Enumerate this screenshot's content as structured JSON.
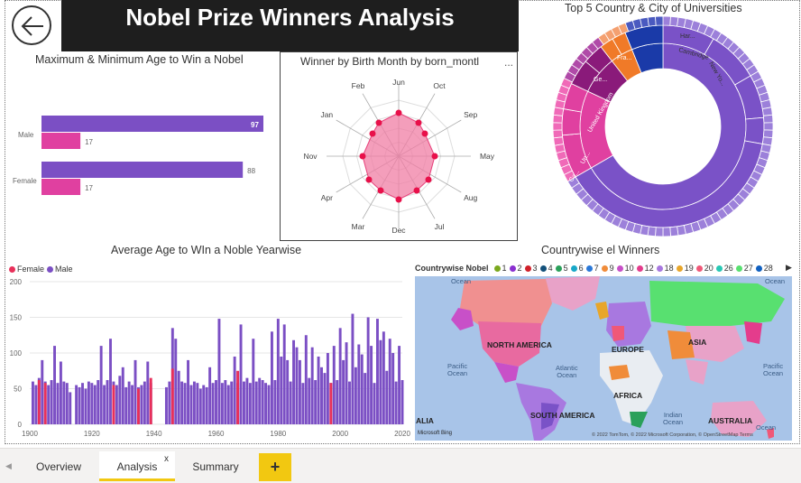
{
  "report": {
    "title": "Nobel Prize Winners Analysis"
  },
  "icons": {
    "back": "back-arrow-icon",
    "more": "more-options-icon",
    "add": "plus-icon",
    "close": "close-icon",
    "scroll": "chevron-left-icon"
  },
  "age_bars": {
    "title": "Maximum & Minimum Age to Win a Nobel",
    "categories": [
      "Male",
      "Female"
    ],
    "max_values": [
      97,
      88
    ],
    "min_values": [
      17,
      17
    ],
    "max_labels": [
      "97",
      "88"
    ],
    "min_labels": [
      "17",
      "17"
    ],
    "colors": {
      "max": "#7b4fc4",
      "min": "#e040a0"
    }
  },
  "radar": {
    "title": "Winner by Birth Month by born_montl",
    "more_label": "...",
    "months": [
      "Jun",
      "Oct",
      "Sep",
      "May",
      "Aug",
      "Jul",
      "Dec",
      "Mar",
      "Apr",
      "Nov",
      "Jan",
      "Feb"
    ],
    "color": "#f07ea4"
  },
  "sunburst": {
    "title": "Top 5 Country & City of Universities",
    "labels": [
      "USA",
      "United Kingdom",
      "Ca...",
      "Un...",
      "Fra...",
      "Ge...",
      "Cambridge",
      "New Yo...",
      "Har..."
    ],
    "colors": [
      "#7a52c7",
      "#e040a0",
      "#f07a28",
      "#8a1a7a",
      "#1a3aa8"
    ]
  },
  "avg_chart": {
    "title": "Average Age to WIn a Noble Yearwise",
    "legend": [
      {
        "name": "Female",
        "color": "#e8305a"
      },
      {
        "name": "Male",
        "color": "#7b4fc4"
      }
    ],
    "x_ticks": [
      "1900",
      "1920",
      "1940",
      "1960",
      "1980",
      "2000",
      "2020"
    ],
    "y_ticks": [
      "0",
      "50",
      "100",
      "150",
      "200"
    ]
  },
  "chart_data": {
    "type": "bar",
    "title": "Average Age to WIn a Noble Yearwise",
    "xlabel": "",
    "ylabel": "",
    "ylim": [
      0,
      200
    ],
    "xlim": [
      1900,
      2020
    ],
    "x": [
      1901,
      1902,
      1903,
      1904,
      1905,
      1906,
      1907,
      1908,
      1909,
      1910,
      1911,
      1912,
      1913,
      1914,
      1915,
      1916,
      1917,
      1918,
      1919,
      1920,
      1921,
      1922,
      1923,
      1924,
      1925,
      1926,
      1927,
      1928,
      1929,
      1930,
      1931,
      1932,
      1933,
      1934,
      1935,
      1936,
      1937,
      1938,
      1939,
      1940,
      1941,
      1942,
      1943,
      1944,
      1945,
      1946,
      1947,
      1948,
      1949,
      1950,
      1951,
      1952,
      1953,
      1954,
      1955,
      1956,
      1957,
      1958,
      1959,
      1960,
      1961,
      1962,
      1963,
      1964,
      1965,
      1966,
      1967,
      1968,
      1969,
      1970,
      1971,
      1972,
      1973,
      1974,
      1975,
      1976,
      1977,
      1978,
      1979,
      1980,
      1981,
      1982,
      1983,
      1984,
      1985,
      1986,
      1987,
      1988,
      1989,
      1990,
      1991,
      1992,
      1993,
      1994,
      1995,
      1996,
      1997,
      1998,
      1999,
      2000,
      2001,
      2002,
      2003,
      2004,
      2005,
      2006,
      2007,
      2008,
      2009,
      2010,
      2011,
      2012,
      2013,
      2014,
      2015,
      2016,
      2017,
      2018,
      2019,
      2020
    ],
    "series": [
      {
        "name": "Male",
        "values": [
          60,
          55,
          65,
          90,
          60,
          55,
          62,
          110,
          58,
          88,
          60,
          58,
          45,
          0,
          55,
          52,
          58,
          50,
          60,
          58,
          55,
          62,
          110,
          55,
          62,
          120,
          60,
          55,
          68,
          80,
          52,
          60,
          55,
          90,
          52,
          55,
          60,
          88,
          58,
          0,
          0,
          0,
          0,
          52,
          60,
          135,
          120,
          75,
          60,
          58,
          90,
          55,
          60,
          58,
          50,
          55,
          52,
          80,
          58,
          62,
          148,
          58,
          62,
          55,
          60,
          95,
          58,
          140,
          60,
          65,
          58,
          120,
          60,
          65,
          62,
          58,
          55,
          130,
          62,
          148,
          95,
          140,
          90,
          60,
          118,
          108,
          90,
          58,
          125,
          65,
          108,
          62,
          95,
          80,
          72,
          100,
          58,
          110,
          62,
          135,
          90,
          115,
          60,
          155,
          80,
          112,
          98,
          72,
          150,
          110,
          58,
          148,
          118,
          130,
          75,
          120,
          100,
          60,
          110,
          62
        ]
      },
      {
        "name": "Female",
        "values": [
          0,
          0,
          62,
          0,
          58,
          0,
          0,
          0,
          0,
          0,
          0,
          0,
          0,
          0,
          0,
          0,
          0,
          0,
          0,
          0,
          0,
          0,
          0,
          0,
          0,
          0,
          55,
          0,
          0,
          0,
          0,
          0,
          0,
          0,
          50,
          0,
          0,
          0,
          65,
          0,
          0,
          0,
          0,
          0,
          0,
          78,
          0,
          0,
          0,
          0,
          0,
          0,
          0,
          0,
          0,
          0,
          0,
          0,
          0,
          0,
          0,
          0,
          0,
          0,
          0,
          0,
          75,
          0,
          0,
          0,
          0,
          0,
          0,
          0,
          0,
          0,
          0,
          0,
          0,
          0,
          0,
          0,
          0,
          0,
          0,
          0,
          0,
          0,
          0,
          0,
          0,
          0,
          0,
          0,
          0,
          0,
          58,
          0,
          0,
          0,
          0,
          0,
          0,
          0,
          0,
          0,
          0,
          0,
          0,
          0,
          0,
          0,
          0,
          0,
          0,
          0,
          0,
          0,
          0,
          0
        ]
      }
    ]
  },
  "map_panel": {
    "title": "Countrywise el Winners",
    "legend_title": "Countrywise Nobel",
    "legend": [
      {
        "label": "1",
        "color": "#7aa81e"
      },
      {
        "label": "2",
        "color": "#8a2fd0"
      },
      {
        "label": "3",
        "color": "#d0202a"
      },
      {
        "label": "4",
        "color": "#12507a"
      },
      {
        "label": "5",
        "color": "#2aa05a"
      },
      {
        "label": "6",
        "color": "#18a8c8"
      },
      {
        "label": "7",
        "color": "#2a78d8"
      },
      {
        "label": "9",
        "color": "#f08c3a"
      },
      {
        "label": "10",
        "color": "#c850c8"
      },
      {
        "label": "12",
        "color": "#e43c8c"
      },
      {
        "label": "18",
        "color": "#a878e0"
      },
      {
        "label": "19",
        "color": "#e8a62a"
      },
      {
        "label": "20",
        "color": "#f05878"
      },
      {
        "label": "26",
        "color": "#28c8b4"
      },
      {
        "label": "27",
        "color": "#58e070"
      },
      {
        "label": "28",
        "color": "#1060c0"
      }
    ],
    "ocean_labels": [
      "Ocean",
      "Ocean",
      "Pacific\nOcean",
      "Atlantic\nOcean",
      "Pacific\nOcean",
      "Indian\nOcean",
      "Ocean"
    ],
    "continent_labels": [
      "NORTH AMERICA",
      "EUROPE",
      "ASIA",
      "AFRICA",
      "SOUTH AMERICA",
      "AUSTRALIA",
      "ALIA"
    ],
    "attribution": "© 2022 TomTom, © 2022 Microsoft Corporation, © OpenStreetMap Terms",
    "logo": "Microsoft Bing"
  },
  "tabs": [
    {
      "label": "Overview"
    },
    {
      "label": "Analysis",
      "close": "x"
    },
    {
      "label": "Summary"
    }
  ],
  "add_tab_label": "+"
}
